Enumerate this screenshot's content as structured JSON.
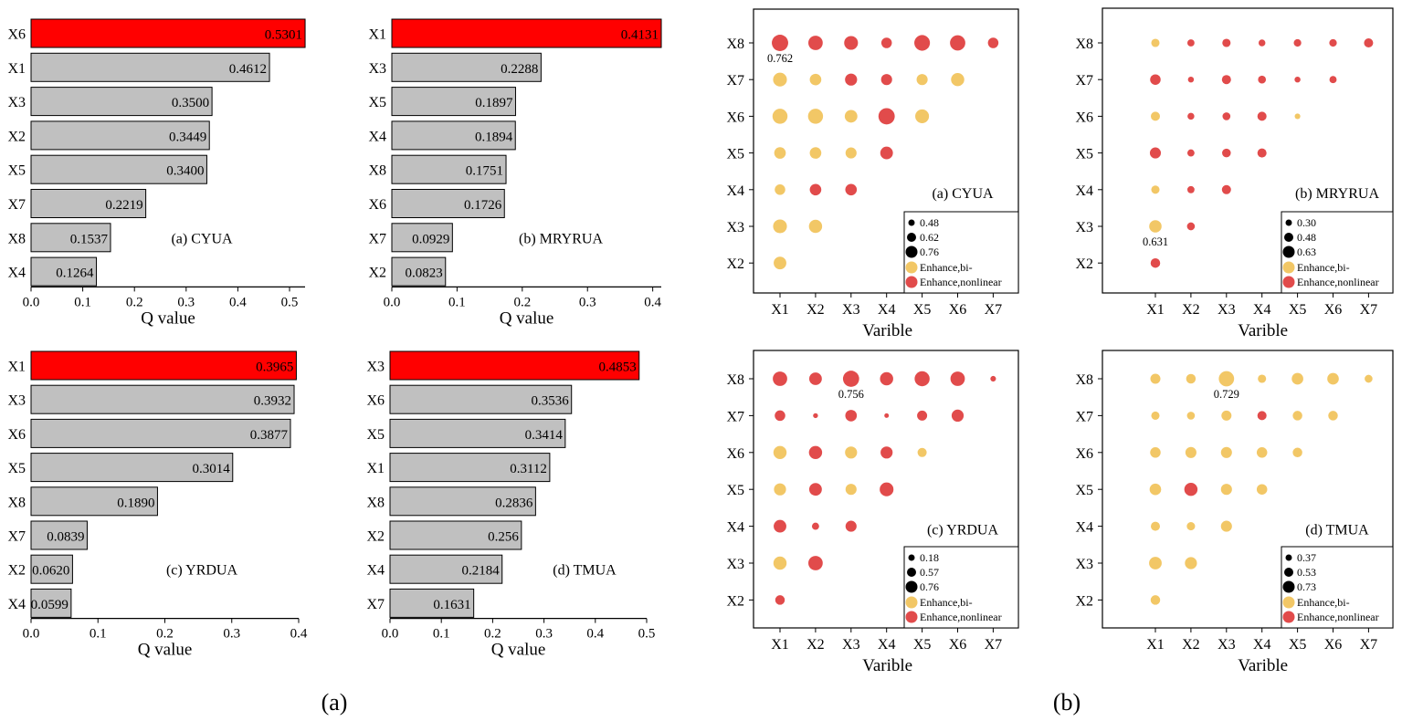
{
  "panel_labels": {
    "left": "(a)",
    "right": "(b)"
  },
  "colors": {
    "highlight_bar": "#ff0000",
    "bar": "#c0c0c0",
    "enhance_bi": "#f2c766",
    "enhance_nonlinear": "#e14b4b"
  },
  "chart_data": [
    {
      "type": "bar",
      "orientation": "horizontal",
      "label": "(a) CYUA",
      "xlabel": "Q value",
      "xlim": [
        0,
        0.53
      ],
      "xticks": [
        "0.0",
        "0.1",
        "0.2",
        "0.3",
        "0.4",
        "0.5"
      ],
      "highlight_top": true,
      "categories": [
        "X6",
        "X1",
        "X3",
        "X2",
        "X5",
        "X7",
        "X8",
        "X4"
      ],
      "values": [
        0.5301,
        0.4612,
        0.35,
        0.3449,
        0.34,
        0.2219,
        0.1537,
        0.1264
      ],
      "value_labels": [
        "0.5301",
        "0.4612",
        "0.3500",
        "0.3449",
        "0.3400",
        "0.2219",
        "0.1537",
        "0.1264"
      ]
    },
    {
      "type": "bar",
      "orientation": "horizontal",
      "label": "(b) MRYRUA",
      "xlabel": "Q value",
      "xlim": [
        0,
        0.4131
      ],
      "xticks": [
        "0.0",
        "0.1",
        "0.2",
        "0.3",
        "0.4"
      ],
      "highlight_top": true,
      "categories": [
        "X1",
        "X3",
        "X5",
        "X4",
        "X8",
        "X6",
        "X7",
        "X2"
      ],
      "values": [
        0.4131,
        0.2288,
        0.1897,
        0.1894,
        0.1751,
        0.1726,
        0.0929,
        0.0823
      ],
      "value_labels": [
        "0.4131",
        "0.2288",
        "0.1897",
        "0.1894",
        "0.1751",
        "0.1726",
        "0.0929",
        "0.0823"
      ]
    },
    {
      "type": "bar",
      "orientation": "horizontal",
      "label": "(c) YRDUA",
      "xlabel": "Q value",
      "xlim": [
        0,
        0.4
      ],
      "xticks": [
        "0.0",
        "0.1",
        "0.2",
        "0.3",
        "0.4"
      ],
      "highlight_top": true,
      "categories": [
        "X1",
        "X3",
        "X6",
        "X5",
        "X8",
        "X7",
        "X2",
        "X4"
      ],
      "values": [
        0.3965,
        0.3932,
        0.3877,
        0.3014,
        0.189,
        0.0839,
        0.062,
        0.0599
      ],
      "value_labels": [
        "0.3965",
        "0.3932",
        "0.3877",
        "0.3014",
        "0.1890",
        "0.0839",
        "0.0620",
        "0.0599"
      ]
    },
    {
      "type": "bar",
      "orientation": "horizontal",
      "label": "(d) TMUA",
      "xlabel": "Q value",
      "xlim": [
        0,
        0.5
      ],
      "xticks": [
        "0.0",
        "0.1",
        "0.2",
        "0.3",
        "0.4",
        "0.5"
      ],
      "highlight_top": true,
      "categories": [
        "X3",
        "X6",
        "X5",
        "X1",
        "X8",
        "X2",
        "X4",
        "X7"
      ],
      "values": [
        0.4853,
        0.3536,
        0.3414,
        0.3112,
        0.2836,
        0.256,
        0.2184,
        0.1631
      ],
      "value_labels": [
        "0.4853",
        "0.3536",
        "0.3414",
        "0.3112",
        "0.2836",
        "0.256",
        "0.2184",
        "0.1631"
      ]
    },
    {
      "type": "scatter",
      "subtype": "bubble-matrix",
      "label": "(a) CYUA",
      "xlabel": "Varible",
      "x_categories": [
        "X1",
        "X2",
        "X3",
        "X4",
        "X5",
        "X6",
        "X7"
      ],
      "y_categories": [
        "X8",
        "X7",
        "X6",
        "X5",
        "X4",
        "X3",
        "X2"
      ],
      "size_legend": [
        "0.48",
        "0.62",
        "0.76"
      ],
      "legend_types": [
        "Enhance,bi-",
        "Enhance,nonlinear"
      ],
      "legend_position": "bottom-right",
      "annotation": {
        "text": "0.762",
        "x": "X1",
        "y": "X8"
      },
      "points": [
        {
          "x": "X1",
          "y": "X8",
          "value": 0.762,
          "type": "nonlinear"
        },
        {
          "x": "X2",
          "y": "X8",
          "value": 0.7,
          "type": "nonlinear"
        },
        {
          "x": "X3",
          "y": "X8",
          "value": 0.68,
          "type": "nonlinear"
        },
        {
          "x": "X4",
          "y": "X8",
          "value": 0.56,
          "type": "nonlinear"
        },
        {
          "x": "X5",
          "y": "X8",
          "value": 0.74,
          "type": "nonlinear"
        },
        {
          "x": "X6",
          "y": "X8",
          "value": 0.73,
          "type": "nonlinear"
        },
        {
          "x": "X7",
          "y": "X8",
          "value": 0.56,
          "type": "nonlinear"
        },
        {
          "x": "X1",
          "y": "X7",
          "value": 0.68,
          "type": "bi"
        },
        {
          "x": "X2",
          "y": "X7",
          "value": 0.6,
          "type": "bi"
        },
        {
          "x": "X3",
          "y": "X7",
          "value": 0.62,
          "type": "nonlinear"
        },
        {
          "x": "X4",
          "y": "X7",
          "value": 0.58,
          "type": "nonlinear"
        },
        {
          "x": "X5",
          "y": "X7",
          "value": 0.58,
          "type": "bi"
        },
        {
          "x": "X6",
          "y": "X7",
          "value": 0.66,
          "type": "bi"
        },
        {
          "x": "X1",
          "y": "X6",
          "value": 0.72,
          "type": "bi"
        },
        {
          "x": "X2",
          "y": "X6",
          "value": 0.72,
          "type": "bi"
        },
        {
          "x": "X3",
          "y": "X6",
          "value": 0.64,
          "type": "bi"
        },
        {
          "x": "X4",
          "y": "X6",
          "value": 0.76,
          "type": "nonlinear"
        },
        {
          "x": "X5",
          "y": "X6",
          "value": 0.68,
          "type": "bi"
        },
        {
          "x": "X1",
          "y": "X5",
          "value": 0.6,
          "type": "bi"
        },
        {
          "x": "X2",
          "y": "X5",
          "value": 0.6,
          "type": "bi"
        },
        {
          "x": "X3",
          "y": "X5",
          "value": 0.58,
          "type": "bi"
        },
        {
          "x": "X4",
          "y": "X5",
          "value": 0.64,
          "type": "nonlinear"
        },
        {
          "x": "X1",
          "y": "X4",
          "value": 0.56,
          "type": "bi"
        },
        {
          "x": "X2",
          "y": "X4",
          "value": 0.6,
          "type": "nonlinear"
        },
        {
          "x": "X3",
          "y": "X4",
          "value": 0.6,
          "type": "nonlinear"
        },
        {
          "x": "X1",
          "y": "X3",
          "value": 0.68,
          "type": "bi"
        },
        {
          "x": "X2",
          "y": "X3",
          "value": 0.66,
          "type": "bi"
        },
        {
          "x": "X1",
          "y": "X2",
          "value": 0.64,
          "type": "bi"
        }
      ]
    },
    {
      "type": "scatter",
      "subtype": "bubble-matrix",
      "label": "(b) MRYRUA",
      "xlabel": "Varible",
      "x_categories": [
        "X1",
        "X2",
        "X3",
        "X4",
        "X5",
        "X6",
        "X7"
      ],
      "y_categories": [
        "X8",
        "X7",
        "X6",
        "X5",
        "X4",
        "X3",
        "X2"
      ],
      "size_legend": [
        "0.30",
        "0.48",
        "0.63"
      ],
      "legend_types": [
        "Enhance,bi-",
        "Enhance,nonlinear"
      ],
      "legend_position": "bottom-right",
      "annotation": {
        "text": "0.631",
        "x": "X1",
        "y": "X3"
      },
      "points": [
        {
          "x": "X1",
          "y": "X8",
          "value": 0.46,
          "type": "bi"
        },
        {
          "x": "X2",
          "y": "X8",
          "value": 0.4,
          "type": "nonlinear"
        },
        {
          "x": "X3",
          "y": "X8",
          "value": 0.46,
          "type": "nonlinear"
        },
        {
          "x": "X4",
          "y": "X8",
          "value": 0.38,
          "type": "nonlinear"
        },
        {
          "x": "X5",
          "y": "X8",
          "value": 0.42,
          "type": "nonlinear"
        },
        {
          "x": "X6",
          "y": "X8",
          "value": 0.42,
          "type": "nonlinear"
        },
        {
          "x": "X7",
          "y": "X8",
          "value": 0.5,
          "type": "nonlinear"
        },
        {
          "x": "X1",
          "y": "X7",
          "value": 0.56,
          "type": "nonlinear"
        },
        {
          "x": "X2",
          "y": "X7",
          "value": 0.32,
          "type": "nonlinear"
        },
        {
          "x": "X3",
          "y": "X7",
          "value": 0.5,
          "type": "nonlinear"
        },
        {
          "x": "X4",
          "y": "X7",
          "value": 0.44,
          "type": "nonlinear"
        },
        {
          "x": "X5",
          "y": "X7",
          "value": 0.32,
          "type": "nonlinear"
        },
        {
          "x": "X6",
          "y": "X7",
          "value": 0.4,
          "type": "nonlinear"
        },
        {
          "x": "X1",
          "y": "X6",
          "value": 0.5,
          "type": "bi"
        },
        {
          "x": "X2",
          "y": "X6",
          "value": 0.38,
          "type": "nonlinear"
        },
        {
          "x": "X3",
          "y": "X6",
          "value": 0.44,
          "type": "nonlinear"
        },
        {
          "x": "X4",
          "y": "X6",
          "value": 0.5,
          "type": "nonlinear"
        },
        {
          "x": "X5",
          "y": "X6",
          "value": 0.3,
          "type": "bi"
        },
        {
          "x": "X1",
          "y": "X5",
          "value": 0.58,
          "type": "nonlinear"
        },
        {
          "x": "X2",
          "y": "X5",
          "value": 0.4,
          "type": "nonlinear"
        },
        {
          "x": "X3",
          "y": "X5",
          "value": 0.48,
          "type": "nonlinear"
        },
        {
          "x": "X4",
          "y": "X5",
          "value": 0.5,
          "type": "nonlinear"
        },
        {
          "x": "X1",
          "y": "X4",
          "value": 0.46,
          "type": "bi"
        },
        {
          "x": "X2",
          "y": "X4",
          "value": 0.4,
          "type": "nonlinear"
        },
        {
          "x": "X3",
          "y": "X4",
          "value": 0.5,
          "type": "nonlinear"
        },
        {
          "x": "X1",
          "y": "X3",
          "value": 0.631,
          "type": "bi"
        },
        {
          "x": "X2",
          "y": "X3",
          "value": 0.44,
          "type": "nonlinear"
        },
        {
          "x": "X1",
          "y": "X2",
          "value": 0.52,
          "type": "nonlinear"
        }
      ]
    },
    {
      "type": "scatter",
      "subtype": "bubble-matrix",
      "label": "(c) YRDUA",
      "xlabel": "Varible",
      "x_categories": [
        "X1",
        "X2",
        "X3",
        "X4",
        "X5",
        "X6",
        "X7"
      ],
      "y_categories": [
        "X8",
        "X7",
        "X6",
        "X5",
        "X4",
        "X3",
        "X2"
      ],
      "size_legend": [
        "0.18",
        "0.57",
        "0.76"
      ],
      "legend_types": [
        "Enhance,bi-",
        "Enhance,nonlinear"
      ],
      "legend_position": "bottom-right",
      "annotation": {
        "text": "0.756",
        "x": "X3",
        "y": "X8"
      },
      "points": [
        {
          "x": "X1",
          "y": "X8",
          "value": 0.7,
          "type": "nonlinear"
        },
        {
          "x": "X2",
          "y": "X8",
          "value": 0.64,
          "type": "nonlinear"
        },
        {
          "x": "X3",
          "y": "X8",
          "value": 0.756,
          "type": "nonlinear"
        },
        {
          "x": "X4",
          "y": "X8",
          "value": 0.66,
          "type": "nonlinear"
        },
        {
          "x": "X5",
          "y": "X8",
          "value": 0.72,
          "type": "nonlinear"
        },
        {
          "x": "X6",
          "y": "X8",
          "value": 0.7,
          "type": "nonlinear"
        },
        {
          "x": "X7",
          "y": "X8",
          "value": 0.3,
          "type": "nonlinear"
        },
        {
          "x": "X1",
          "y": "X7",
          "value": 0.56,
          "type": "nonlinear"
        },
        {
          "x": "X2",
          "y": "X7",
          "value": 0.24,
          "type": "nonlinear"
        },
        {
          "x": "X3",
          "y": "X7",
          "value": 0.6,
          "type": "nonlinear"
        },
        {
          "x": "X4",
          "y": "X7",
          "value": 0.2,
          "type": "nonlinear"
        },
        {
          "x": "X5",
          "y": "X7",
          "value": 0.54,
          "type": "nonlinear"
        },
        {
          "x": "X6",
          "y": "X7",
          "value": 0.62,
          "type": "nonlinear"
        },
        {
          "x": "X1",
          "y": "X6",
          "value": 0.66,
          "type": "bi"
        },
        {
          "x": "X2",
          "y": "X6",
          "value": 0.66,
          "type": "nonlinear"
        },
        {
          "x": "X3",
          "y": "X6",
          "value": 0.62,
          "type": "bi"
        },
        {
          "x": "X4",
          "y": "X6",
          "value": 0.62,
          "type": "nonlinear"
        },
        {
          "x": "X5",
          "y": "X6",
          "value": 0.5,
          "type": "bi"
        },
        {
          "x": "X1",
          "y": "X5",
          "value": 0.62,
          "type": "bi"
        },
        {
          "x": "X2",
          "y": "X5",
          "value": 0.64,
          "type": "nonlinear"
        },
        {
          "x": "X3",
          "y": "X5",
          "value": 0.58,
          "type": "bi"
        },
        {
          "x": "X4",
          "y": "X5",
          "value": 0.68,
          "type": "nonlinear"
        },
        {
          "x": "X1",
          "y": "X4",
          "value": 0.64,
          "type": "nonlinear"
        },
        {
          "x": "X2",
          "y": "X4",
          "value": 0.4,
          "type": "nonlinear"
        },
        {
          "x": "X3",
          "y": "X4",
          "value": 0.58,
          "type": "nonlinear"
        },
        {
          "x": "X1",
          "y": "X3",
          "value": 0.66,
          "type": "bi"
        },
        {
          "x": "X2",
          "y": "X3",
          "value": 0.7,
          "type": "nonlinear"
        },
        {
          "x": "X1",
          "y": "X2",
          "value": 0.52,
          "type": "nonlinear"
        }
      ]
    },
    {
      "type": "scatter",
      "subtype": "bubble-matrix",
      "label": "(d) TMUA",
      "xlabel": "Varible",
      "x_categories": [
        "X1",
        "X2",
        "X3",
        "X4",
        "X5",
        "X6",
        "X7"
      ],
      "y_categories": [
        "X8",
        "X7",
        "X6",
        "X5",
        "X4",
        "X3",
        "X2"
      ],
      "size_legend": [
        "0.37",
        "0.53",
        "0.73"
      ],
      "legend_types": [
        "Enhance,bi-",
        "Enhance,nonlinear"
      ],
      "legend_position": "bottom-right",
      "annotation": {
        "text": "0.729",
        "x": "X3",
        "y": "X8"
      },
      "points": [
        {
          "x": "X1",
          "y": "X8",
          "value": 0.54,
          "type": "bi"
        },
        {
          "x": "X2",
          "y": "X8",
          "value": 0.52,
          "type": "bi"
        },
        {
          "x": "X3",
          "y": "X8",
          "value": 0.729,
          "type": "bi"
        },
        {
          "x": "X4",
          "y": "X8",
          "value": 0.46,
          "type": "bi"
        },
        {
          "x": "X5",
          "y": "X8",
          "value": 0.6,
          "type": "bi"
        },
        {
          "x": "X6",
          "y": "X8",
          "value": 0.6,
          "type": "bi"
        },
        {
          "x": "X7",
          "y": "X8",
          "value": 0.44,
          "type": "bi"
        },
        {
          "x": "X1",
          "y": "X7",
          "value": 0.46,
          "type": "bi"
        },
        {
          "x": "X2",
          "y": "X7",
          "value": 0.44,
          "type": "bi"
        },
        {
          "x": "X3",
          "y": "X7",
          "value": 0.54,
          "type": "bi"
        },
        {
          "x": "X4",
          "y": "X7",
          "value": 0.5,
          "type": "nonlinear"
        },
        {
          "x": "X5",
          "y": "X7",
          "value": 0.52,
          "type": "bi"
        },
        {
          "x": "X6",
          "y": "X7",
          "value": 0.52,
          "type": "bi"
        },
        {
          "x": "X1",
          "y": "X6",
          "value": 0.56,
          "type": "bi"
        },
        {
          "x": "X2",
          "y": "X6",
          "value": 0.58,
          "type": "bi"
        },
        {
          "x": "X3",
          "y": "X6",
          "value": 0.58,
          "type": "bi"
        },
        {
          "x": "X4",
          "y": "X6",
          "value": 0.56,
          "type": "bi"
        },
        {
          "x": "X5",
          "y": "X6",
          "value": 0.52,
          "type": "bi"
        },
        {
          "x": "X1",
          "y": "X5",
          "value": 0.6,
          "type": "bi"
        },
        {
          "x": "X2",
          "y": "X5",
          "value": 0.66,
          "type": "nonlinear"
        },
        {
          "x": "X3",
          "y": "X5",
          "value": 0.58,
          "type": "bi"
        },
        {
          "x": "X4",
          "y": "X5",
          "value": 0.56,
          "type": "bi"
        },
        {
          "x": "X1",
          "y": "X4",
          "value": 0.5,
          "type": "bi"
        },
        {
          "x": "X2",
          "y": "X4",
          "value": 0.46,
          "type": "bi"
        },
        {
          "x": "X3",
          "y": "X4",
          "value": 0.58,
          "type": "bi"
        },
        {
          "x": "X1",
          "y": "X3",
          "value": 0.64,
          "type": "bi"
        },
        {
          "x": "X2",
          "y": "X3",
          "value": 0.62,
          "type": "bi"
        },
        {
          "x": "X1",
          "y": "X2",
          "value": 0.52,
          "type": "bi"
        }
      ]
    }
  ]
}
